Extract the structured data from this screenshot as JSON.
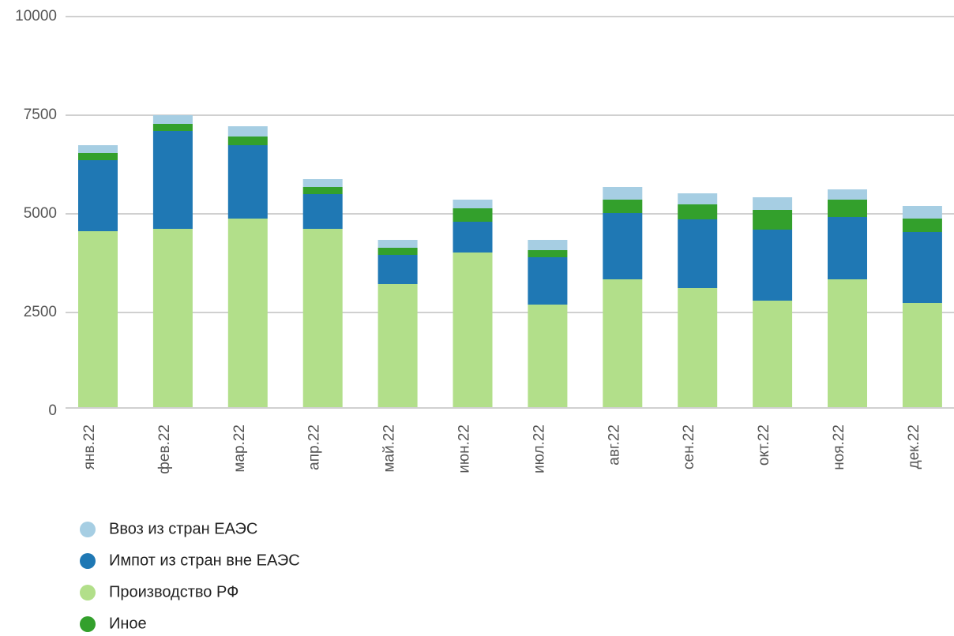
{
  "chart_data": {
    "type": "bar",
    "stacked": true,
    "categories": [
      "янв.22",
      "фев.22",
      "мар.22",
      "апр.22",
      "май.22",
      "июн.22",
      "июл.22",
      "авг.22",
      "сен.22",
      "окт.22",
      "ноя.22",
      "дек.22"
    ],
    "series": [
      {
        "name": "Ввоз из стран ЕАЭС",
        "color": "#a6cee3",
        "values": [
          200,
          220,
          260,
          200,
          200,
          220,
          260,
          320,
          280,
          320,
          260,
          320
        ]
      },
      {
        "name": "Импот из стран вне ЕАЭС",
        "color": "#1f78b4",
        "values": [
          1800,
          2480,
          1860,
          880,
          740,
          780,
          1200,
          1680,
          1740,
          1800,
          1580,
          1800
        ]
      },
      {
        "name": "Производство РФ",
        "color": "#b2df8a",
        "values": [
          4560,
          4620,
          4880,
          4620,
          3220,
          4020,
          2700,
          3340,
          3120,
          2800,
          3340,
          2740
        ]
      },
      {
        "name": "Иное",
        "color": "#33a02c",
        "values": [
          180,
          180,
          220,
          180,
          180,
          340,
          180,
          340,
          380,
          500,
          440,
          340
        ]
      }
    ],
    "ylim": [
      0,
      10000
    ],
    "yticks": [
      0,
      2500,
      5000,
      7500,
      10000
    ],
    "grid": true
  }
}
